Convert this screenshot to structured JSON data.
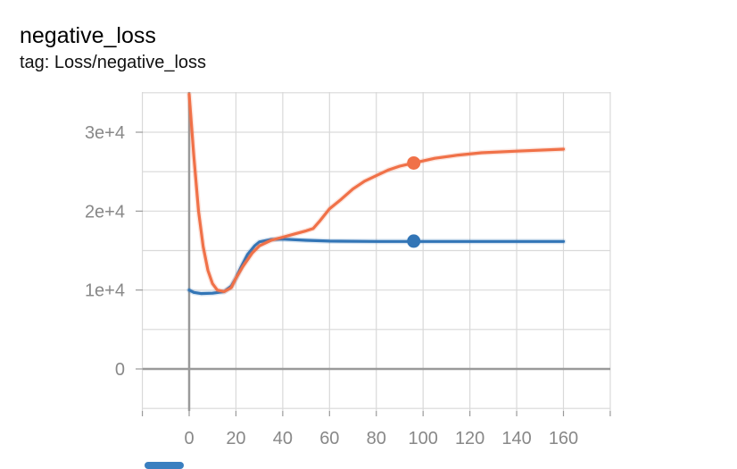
{
  "card": {
    "title": "negative_loss",
    "tag": "tag: Loss/negative_loss"
  },
  "colors": {
    "series_1": "#3275b6",
    "series_2": "#f07148",
    "grid": "#d9d9d9",
    "axis": "#9a9a9a",
    "tick_text": "#888888"
  },
  "chart_data": {
    "type": "line",
    "title": "negative_loss",
    "xlabel": "",
    "ylabel": "",
    "xlim": [
      -20,
      180
    ],
    "ylim": [
      -5000,
      35000
    ],
    "grid": true,
    "x_ticks": [
      0,
      20,
      40,
      60,
      80,
      100,
      120,
      140,
      160
    ],
    "y_ticks": [
      0,
      10000,
      20000,
      30000
    ],
    "y_tick_labels": [
      "0",
      "1e+4",
      "2e+4",
      "3e+4"
    ],
    "series": [
      {
        "color": "#3275b6",
        "points": [
          [
            0,
            10000
          ],
          [
            2,
            9700
          ],
          [
            5,
            9550
          ],
          [
            10,
            9600
          ],
          [
            15,
            9800
          ],
          [
            18,
            10500
          ],
          [
            20,
            11500
          ],
          [
            22,
            12800
          ],
          [
            25,
            14500
          ],
          [
            28,
            15600
          ],
          [
            30,
            16100
          ],
          [
            35,
            16400
          ],
          [
            40,
            16450
          ],
          [
            50,
            16300
          ],
          [
            60,
            16200
          ],
          [
            80,
            16150
          ],
          [
            100,
            16150
          ],
          [
            120,
            16150
          ],
          [
            140,
            16150
          ],
          [
            160,
            16150
          ]
        ],
        "marker": [
          96,
          16200
        ]
      },
      {
        "color": "#f07148",
        "points": [
          [
            0,
            34800
          ],
          [
            2,
            27000
          ],
          [
            4,
            20000
          ],
          [
            6,
            15500
          ],
          [
            8,
            12500
          ],
          [
            10,
            10800
          ],
          [
            12,
            10000
          ],
          [
            15,
            9800
          ],
          [
            18,
            10300
          ],
          [
            20,
            11500
          ],
          [
            23,
            13000
          ],
          [
            27,
            14700
          ],
          [
            30,
            15600
          ],
          [
            35,
            16300
          ],
          [
            40,
            16700
          ],
          [
            45,
            17100
          ],
          [
            50,
            17500
          ],
          [
            53,
            17800
          ],
          [
            56,
            18800
          ],
          [
            60,
            20300
          ],
          [
            65,
            21500
          ],
          [
            70,
            22800
          ],
          [
            75,
            23800
          ],
          [
            80,
            24500
          ],
          [
            85,
            25200
          ],
          [
            90,
            25700
          ],
          [
            96,
            26100
          ],
          [
            105,
            26700
          ],
          [
            115,
            27100
          ],
          [
            125,
            27400
          ],
          [
            140,
            27600
          ],
          [
            160,
            27850
          ]
        ],
        "marker": [
          96,
          26100
        ]
      }
    ]
  }
}
